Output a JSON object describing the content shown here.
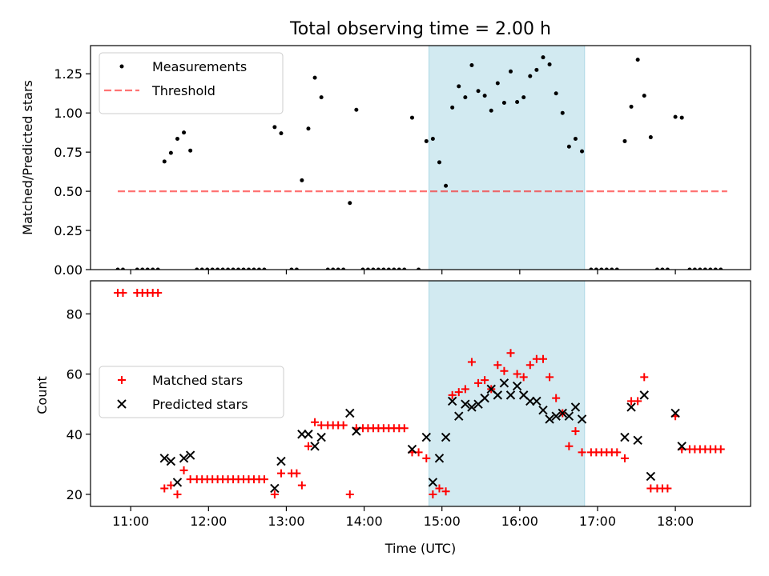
{
  "chart_data": [
    {
      "type": "scatter",
      "title": "Total observing time = 2.00 h",
      "ylabel": "Matched/Predicted stars",
      "xlabel": "",
      "xlim": [
        "10:29",
        "18:58"
      ],
      "ylim": [
        0,
        1.43
      ],
      "yticks": [
        "0.00",
        "0.25",
        "0.50",
        "0.75",
        "1.00",
        "1.25"
      ],
      "xticks": [
        "11:00",
        "12:00",
        "13:00",
        "14:00",
        "15:00",
        "16:00",
        "17:00",
        "18:00"
      ],
      "shaded_span": [
        "14:50",
        "16:50"
      ],
      "shade_color": "#add8e6",
      "legend": {
        "loc": "upper-left",
        "entries": [
          "Measurements",
          "Threshold"
        ]
      },
      "series": [
        {
          "name": "Measurements",
          "marker": "dot",
          "color": "#000000",
          "points": [
            [
              "10:50",
              0
            ],
            [
              "10:54",
              0
            ],
            [
              "11:05",
              0
            ],
            [
              "11:09",
              0
            ],
            [
              "11:13",
              0
            ],
            [
              "11:17",
              0
            ],
            [
              "11:21",
              0
            ],
            [
              "11:26",
              0.69
            ],
            [
              "11:31",
              0.745
            ],
            [
              "11:36",
              0.835
            ],
            [
              "11:41",
              0.875
            ],
            [
              "11:46",
              0.76
            ],
            [
              "11:51",
              0
            ],
            [
              "11:55",
              0
            ],
            [
              "11:59",
              0
            ],
            [
              "12:03",
              0
            ],
            [
              "12:07",
              0
            ],
            [
              "12:11",
              0
            ],
            [
              "12:15",
              0
            ],
            [
              "12:19",
              0
            ],
            [
              "12:23",
              0
            ],
            [
              "12:27",
              0
            ],
            [
              "12:31",
              0
            ],
            [
              "12:35",
              0
            ],
            [
              "12:39",
              0
            ],
            [
              "12:43",
              0
            ],
            [
              "12:51",
              0.91
            ],
            [
              "12:56",
              0.87
            ],
            [
              "13:04",
              0
            ],
            [
              "13:08",
              0
            ],
            [
              "13:12",
              0.57
            ],
            [
              "13:17",
              0.9
            ],
            [
              "13:22",
              1.225
            ],
            [
              "13:27",
              1.1
            ],
            [
              "13:32",
              0
            ],
            [
              "13:36",
              0
            ],
            [
              "13:40",
              0
            ],
            [
              "13:44",
              0
            ],
            [
              "13:49",
              0.425
            ],
            [
              "13:54",
              1.02
            ],
            [
              "13:59",
              0
            ],
            [
              "14:03",
              0
            ],
            [
              "14:07",
              0
            ],
            [
              "14:11",
              0
            ],
            [
              "14:15",
              0
            ],
            [
              "14:19",
              0
            ],
            [
              "14:23",
              0
            ],
            [
              "14:27",
              0
            ],
            [
              "14:31",
              0
            ],
            [
              "14:37",
              0.97
            ],
            [
              "14:42",
              0
            ],
            [
              "14:48",
              0.82
            ],
            [
              "14:53",
              0.835
            ],
            [
              "14:58",
              0.685
            ],
            [
              "15:03",
              0.535
            ],
            [
              "15:08",
              1.035
            ],
            [
              "15:13",
              1.17
            ],
            [
              "15:18",
              1.1
            ],
            [
              "15:23",
              1.305
            ],
            [
              "15:28",
              1.14
            ],
            [
              "15:33",
              1.11
            ],
            [
              "15:38",
              1.015
            ],
            [
              "15:43",
              1.19
            ],
            [
              "15:48",
              1.065
            ],
            [
              "15:53",
              1.265
            ],
            [
              "15:58",
              1.07
            ],
            [
              "16:03",
              1.1
            ],
            [
              "16:08",
              1.235
            ],
            [
              "16:13",
              1.275
            ],
            [
              "16:18",
              1.355
            ],
            [
              "16:23",
              1.31
            ],
            [
              "16:28",
              1.125
            ],
            [
              "16:33",
              1.0
            ],
            [
              "16:38",
              0.785
            ],
            [
              "16:43",
              0.835
            ],
            [
              "16:48",
              0.755
            ],
            [
              "16:55",
              0
            ],
            [
              "16:59",
              0
            ],
            [
              "17:03",
              0
            ],
            [
              "17:07",
              0
            ],
            [
              "17:11",
              0
            ],
            [
              "17:15",
              0
            ],
            [
              "17:21",
              0.82
            ],
            [
              "17:26",
              1.04
            ],
            [
              "17:31",
              1.34
            ],
            [
              "17:36",
              1.11
            ],
            [
              "17:41",
              0.845
            ],
            [
              "17:46",
              0
            ],
            [
              "17:50",
              0
            ],
            [
              "17:54",
              0
            ],
            [
              "18:00",
              0.975
            ],
            [
              "18:05",
              0.97
            ],
            [
              "18:11",
              0
            ],
            [
              "18:15",
              0
            ],
            [
              "18:19",
              0
            ],
            [
              "18:23",
              0
            ],
            [
              "18:27",
              0
            ],
            [
              "18:31",
              0
            ],
            [
              "18:35",
              0
            ]
          ]
        },
        {
          "name": "Threshold",
          "marker": "dashed-line",
          "color": "#ff0000",
          "points": [
            [
              "10:50",
              0.5
            ],
            [
              "18:40",
              0.5
            ]
          ]
        }
      ]
    },
    {
      "type": "scatter",
      "title": "",
      "xlabel": "Time (UTC)",
      "ylabel": "Count",
      "xlim": [
        "10:29",
        "18:58"
      ],
      "ylim": [
        16,
        91
      ],
      "yticks": [
        "20",
        "40",
        "60",
        "80"
      ],
      "xticks": [
        "11:00",
        "12:00",
        "13:00",
        "14:00",
        "15:00",
        "16:00",
        "17:00",
        "18:00"
      ],
      "shaded_span": [
        "14:50",
        "16:50"
      ],
      "shade_color": "#add8e6",
      "legend": {
        "loc": "center-left",
        "entries": [
          "Matched stars",
          "Predicted stars"
        ]
      },
      "series": [
        {
          "name": "Matched stars",
          "marker": "plus",
          "color": "#ff0000",
          "points": [
            [
              "10:50",
              87
            ],
            [
              "10:54",
              87
            ],
            [
              "11:05",
              87
            ],
            [
              "11:09",
              87
            ],
            [
              "11:13",
              87
            ],
            [
              "11:17",
              87
            ],
            [
              "11:21",
              87
            ],
            [
              "11:26",
              22
            ],
            [
              "11:31",
              23
            ],
            [
              "11:36",
              20
            ],
            [
              "11:41",
              28
            ],
            [
              "11:46",
              25
            ],
            [
              "11:51",
              25
            ],
            [
              "11:55",
              25
            ],
            [
              "11:59",
              25
            ],
            [
              "12:03",
              25
            ],
            [
              "12:07",
              25
            ],
            [
              "12:11",
              25
            ],
            [
              "12:15",
              25
            ],
            [
              "12:19",
              25
            ],
            [
              "12:23",
              25
            ],
            [
              "12:27",
              25
            ],
            [
              "12:31",
              25
            ],
            [
              "12:35",
              25
            ],
            [
              "12:39",
              25
            ],
            [
              "12:43",
              25
            ],
            [
              "12:51",
              20
            ],
            [
              "12:56",
              27
            ],
            [
              "13:04",
              27
            ],
            [
              "13:08",
              27
            ],
            [
              "13:12",
              23
            ],
            [
              "13:17",
              36
            ],
            [
              "13:22",
              44
            ],
            [
              "13:27",
              43
            ],
            [
              "13:32",
              43
            ],
            [
              "13:36",
              43
            ],
            [
              "13:40",
              43
            ],
            [
              "13:44",
              43
            ],
            [
              "13:49",
              20
            ],
            [
              "13:54",
              42
            ],
            [
              "13:59",
              42
            ],
            [
              "14:03",
              42
            ],
            [
              "14:07",
              42
            ],
            [
              "14:11",
              42
            ],
            [
              "14:15",
              42
            ],
            [
              "14:19",
              42
            ],
            [
              "14:23",
              42
            ],
            [
              "14:27",
              42
            ],
            [
              "14:31",
              42
            ],
            [
              "14:37",
              34
            ],
            [
              "14:42",
              34
            ],
            [
              "14:48",
              32
            ],
            [
              "14:53",
              20
            ],
            [
              "14:58",
              22
            ],
            [
              "15:03",
              21
            ],
            [
              "15:08",
              53
            ],
            [
              "15:13",
              54
            ],
            [
              "15:18",
              55
            ],
            [
              "15:23",
              64
            ],
            [
              "15:28",
              57
            ],
            [
              "15:33",
              58
            ],
            [
              "15:38",
              55
            ],
            [
              "15:43",
              63
            ],
            [
              "15:48",
              61
            ],
            [
              "15:53",
              67
            ],
            [
              "15:58",
              60
            ],
            [
              "16:03",
              59
            ],
            [
              "16:08",
              63
            ],
            [
              "16:13",
              65
            ],
            [
              "16:18",
              65
            ],
            [
              "16:23",
              59
            ],
            [
              "16:28",
              52
            ],
            [
              "16:33",
              47
            ],
            [
              "16:38",
              36
            ],
            [
              "16:43",
              41
            ],
            [
              "16:48",
              34
            ],
            [
              "16:55",
              34
            ],
            [
              "16:59",
              34
            ],
            [
              "17:03",
              34
            ],
            [
              "17:07",
              34
            ],
            [
              "17:11",
              34
            ],
            [
              "17:15",
              34
            ],
            [
              "17:21",
              32
            ],
            [
              "17:26",
              51
            ],
            [
              "17:31",
              51
            ],
            [
              "17:36",
              59
            ],
            [
              "17:41",
              22
            ],
            [
              "17:46",
              22
            ],
            [
              "17:50",
              22
            ],
            [
              "17:54",
              22
            ],
            [
              "18:00",
              46
            ],
            [
              "18:05",
              35
            ],
            [
              "18:11",
              35
            ],
            [
              "18:15",
              35
            ],
            [
              "18:19",
              35
            ],
            [
              "18:23",
              35
            ],
            [
              "18:27",
              35
            ],
            [
              "18:31",
              35
            ],
            [
              "18:35",
              35
            ]
          ]
        },
        {
          "name": "Predicted stars",
          "marker": "x",
          "color": "#000000",
          "points": [
            [
              "11:26",
              32
            ],
            [
              "11:31",
              31
            ],
            [
              "11:36",
              24
            ],
            [
              "11:41",
              32
            ],
            [
              "11:46",
              33
            ],
            [
              "12:51",
              22
            ],
            [
              "12:56",
              31
            ],
            [
              "13:12",
              40
            ],
            [
              "13:17",
              40
            ],
            [
              "13:22",
              36
            ],
            [
              "13:27",
              39
            ],
            [
              "13:49",
              47
            ],
            [
              "13:54",
              41
            ],
            [
              "14:37",
              35
            ],
            [
              "14:48",
              39
            ],
            [
              "14:53",
              24
            ],
            [
              "14:58",
              32
            ],
            [
              "15:03",
              39
            ],
            [
              "15:08",
              51
            ],
            [
              "15:13",
              46
            ],
            [
              "15:18",
              50
            ],
            [
              "15:23",
              49
            ],
            [
              "15:28",
              50
            ],
            [
              "15:33",
              52
            ],
            [
              "15:38",
              55
            ],
            [
              "15:43",
              53
            ],
            [
              "15:48",
              57
            ],
            [
              "15:53",
              53
            ],
            [
              "15:58",
              56
            ],
            [
              "16:03",
              53
            ],
            [
              "16:08",
              51
            ],
            [
              "16:13",
              51
            ],
            [
              "16:18",
              48
            ],
            [
              "16:23",
              45
            ],
            [
              "16:28",
              46
            ],
            [
              "16:33",
              47
            ],
            [
              "16:38",
              46
            ],
            [
              "16:43",
              49
            ],
            [
              "16:48",
              45
            ],
            [
              "17:21",
              39
            ],
            [
              "17:26",
              49
            ],
            [
              "17:31",
              38
            ],
            [
              "17:36",
              53
            ],
            [
              "17:41",
              26
            ],
            [
              "18:00",
              47
            ],
            [
              "18:05",
              36
            ]
          ]
        }
      ]
    }
  ]
}
